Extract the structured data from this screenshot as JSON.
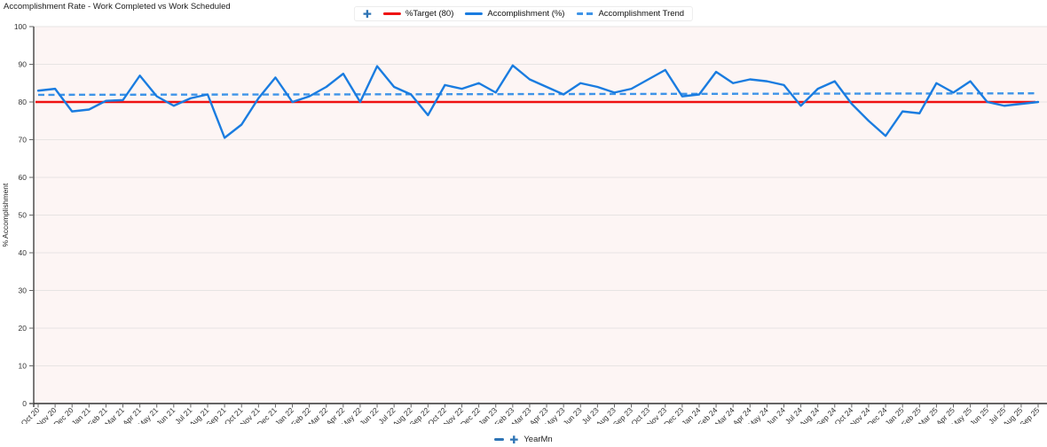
{
  "title": "Accomplishment Rate - Work Completed vs Work Scheduled",
  "legend": {
    "move_icon_glyph": "✚",
    "items": [
      {
        "label": "%Target (80)",
        "color": "#ee1111",
        "dash": false
      },
      {
        "label": "Accomplishment (%)",
        "color": "#1a7ce0",
        "dash": false
      },
      {
        "label": "Accomplishment Trend",
        "color": "#3e94e8",
        "dash": true
      }
    ]
  },
  "x_axis": {
    "title": "YearMn",
    "collapse_icon": "minus-bar",
    "expand_icon_glyph": "✚"
  },
  "colors": {
    "plot_bg": "#fdf5f4",
    "gridline": "#e7e4e3",
    "axis_line": "#333333",
    "tick": "#666666",
    "tick_label": "#333333",
    "red_line": "#ee1111",
    "blue_line": "#1a7ce0",
    "trend_line": "#3e94e8"
  },
  "chart_data": {
    "type": "line",
    "title": "Accomplishment Rate - Work Completed vs Work Scheduled",
    "xlabel": "YearMn",
    "ylabel": "% Accomplishment",
    "ylim": [
      0,
      100
    ],
    "y_tick_step": 10,
    "grid": true,
    "legend_position": "top-center",
    "categories": [
      "Oct 20",
      "Nov 20",
      "Dec 20",
      "Jan 21",
      "Feb 21",
      "Mar 21",
      "Apr 21",
      "May 21",
      "Jun 21",
      "Jul 21",
      "Aug 21",
      "Sep 21",
      "Oct 21",
      "Nov 21",
      "Dec 21",
      "Jan 22",
      "Feb 22",
      "Mar 22",
      "Apr 22",
      "May 22",
      "Jun 22",
      "Jul 22",
      "Aug 22",
      "Sep 22",
      "Oct 22",
      "Nov 22",
      "Dec 22",
      "Jan 23",
      "Feb 23",
      "Mar 23",
      "Apr 23",
      "May 23",
      "Jun 23",
      "Jul 23",
      "Aug 23",
      "Sep 23",
      "Oct 23",
      "Nov 23",
      "Dec 23",
      "Jan 24",
      "Feb 24",
      "Mar 24",
      "Apr 24",
      "May 24",
      "Jun 24",
      "Jul 24",
      "Aug 24",
      "Sep 24",
      "Oct 24",
      "Nov 24",
      "Dec 24",
      "Jan 25",
      "Feb 25",
      "Mar 25",
      "Apr 25",
      "May 25",
      "Jun 25",
      "Jul 25",
      "Aug 25",
      "Sep 25"
    ],
    "series": [
      {
        "name": "%Target (80)",
        "style": "solid",
        "constant": 80
      },
      {
        "name": "Accomplishment (%)",
        "style": "solid",
        "values": [
          83,
          83.5,
          77.5,
          78,
          80.3,
          80.5,
          87,
          81.5,
          79,
          81,
          82,
          70.5,
          74,
          81,
          86.5,
          80,
          81.5,
          84,
          87.5,
          80,
          89.5,
          84,
          82,
          76.5,
          84.5,
          83.5,
          85,
          82.5,
          89.7,
          86,
          84,
          82,
          85,
          84,
          82.5,
          83.5,
          86,
          88.5,
          81.5,
          82,
          88,
          85,
          86,
          85.5,
          84.5,
          79,
          83.5,
          85.5,
          79.5,
          75,
          71,
          77.5,
          77,
          85,
          82.5,
          85.5,
          80,
          79,
          79.5,
          80
        ]
      },
      {
        "name": "Accomplishment Trend",
        "style": "dashed",
        "trend_start": 81.9,
        "trend_end": 82.3
      }
    ]
  }
}
